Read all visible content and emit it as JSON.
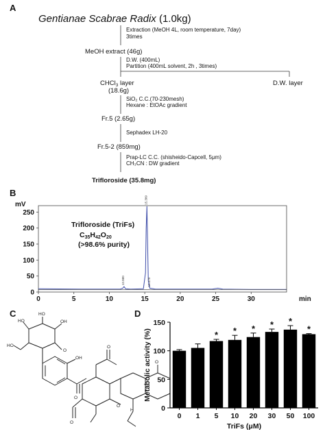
{
  "panel_a": {
    "label": "A",
    "title": "Gentianae Scabrae Radix",
    "title_suffix": " (1.0kg)",
    "step1": [
      "Extraction (MeOH 4L, room temperature, 7day)",
      "3times"
    ],
    "meoh": "MeOH extract (46g)",
    "step2": [
      "D.W. (400mL)",
      "Partition (400mL solvent, 2h , 3times)"
    ],
    "chcl3_a": "CHCl",
    "chcl3_sub": "3",
    "chcl3_b": " layer",
    "chcl3_mass": "(18.6g)",
    "dw_layer": "D.W. layer",
    "step3": [
      "SiO₂ C.C.(70-230mesh)",
      "Hexane : EtOAc gradient"
    ],
    "fr5": "Fr.5 (2.65g)",
    "step4": "Sephadex LH-20",
    "fr52": "Fr.5-2 (859mg)",
    "step5": [
      "Prap-LC C.C. (shisheido-Capcell, 5μm)",
      "CH₃CN : DW gradient"
    ],
    "final": "Trifloroside (35.8mg)"
  },
  "panel_b": {
    "label": "B",
    "compound": "Trifloroside (TriFs)",
    "formula_parts": [
      "C",
      "35",
      "H",
      "42",
      "O",
      "20"
    ],
    "purity": "(>98.6% purity)",
    "peak_labels": [
      "12.080",
      "15.309",
      "15.470"
    ]
  },
  "panel_c": {
    "label": "C"
  },
  "panel_d": {
    "label": "D",
    "star": "*"
  },
  "chart_data": [
    {
      "type": "line",
      "ylabel": "mV",
      "xlabel": "min",
      "xlim": [
        0,
        35
      ],
      "ylim": [
        0,
        270
      ],
      "xticks": [
        0,
        5,
        10,
        15,
        20,
        25,
        30
      ],
      "yticks": [
        0,
        50,
        100,
        150,
        200,
        250
      ],
      "grid": false,
      "series": [
        {
          "color": "#3b4aa8",
          "x": [
            0,
            6,
            11.5,
            11.9,
            12.08,
            12.3,
            13,
            14.8,
            15.1,
            15.2,
            15.31,
            15.4,
            15.5,
            15.7,
            16.5,
            20,
            24.5,
            25.3,
            26,
            30,
            35
          ],
          "y": [
            10,
            9,
            9,
            12,
            17,
            10,
            9,
            10,
            60,
            200,
            268,
            150,
            35,
            12,
            9,
            9,
            9,
            12,
            9,
            8,
            8
          ]
        },
        {
          "color": "#2c2c2c",
          "x": [
            0,
            35
          ],
          "y": [
            8,
            8
          ]
        }
      ]
    },
    {
      "type": "bar",
      "xlabel": "TriFs (μM)",
      "ylabel": "Metabolic activity (%)",
      "categories": [
        "0",
        "1",
        "5",
        "10",
        "20",
        "30",
        "50",
        "100"
      ],
      "values": [
        100,
        105,
        117,
        119,
        124,
        133,
        137,
        129
      ],
      "errors": [
        2,
        7,
        3,
        8,
        7,
        5,
        7,
        1
      ],
      "significant": [
        false,
        false,
        true,
        true,
        true,
        true,
        true,
        true
      ],
      "ylim": [
        0,
        150
      ],
      "yticks": [
        0,
        50,
        100,
        150
      ],
      "color": "#000000"
    }
  ]
}
